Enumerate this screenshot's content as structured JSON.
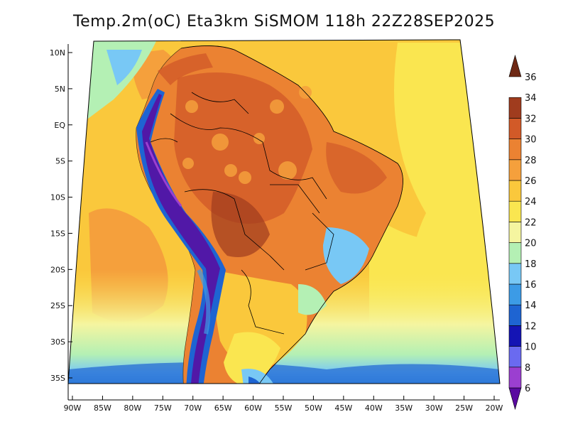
{
  "title": "Temp.2m(oC) Eta3km SiSMOM 118h 22Z28SEP2025",
  "map": {
    "lat_range": [
      -38,
      11
    ],
    "lon_range": [
      -91,
      -19
    ],
    "lat_ticks": [
      {
        "value": 10,
        "label": "10N"
      },
      {
        "value": 5,
        "label": "5N"
      },
      {
        "value": 0,
        "label": "EQ"
      },
      {
        "value": -5,
        "label": "5S"
      },
      {
        "value": -10,
        "label": "10S"
      },
      {
        "value": -15,
        "label": "15S"
      },
      {
        "value": -20,
        "label": "20S"
      },
      {
        "value": -25,
        "label": "25S"
      },
      {
        "value": -30,
        "label": "30S"
      },
      {
        "value": -35,
        "label": "35S"
      }
    ],
    "lon_ticks": [
      {
        "value": -90,
        "label": "90W"
      },
      {
        "value": -85,
        "label": "85W"
      },
      {
        "value": -80,
        "label": "80W"
      },
      {
        "value": -75,
        "label": "75W"
      },
      {
        "value": -70,
        "label": "70W"
      },
      {
        "value": -65,
        "label": "65W"
      },
      {
        "value": -60,
        "label": "60W"
      },
      {
        "value": -55,
        "label": "55W"
      },
      {
        "value": -50,
        "label": "50W"
      },
      {
        "value": -45,
        "label": "45W"
      },
      {
        "value": -40,
        "label": "40W"
      },
      {
        "value": -35,
        "label": "35W"
      },
      {
        "value": -30,
        "label": "30W"
      },
      {
        "value": -25,
        "label": "25W"
      },
      {
        "value": -20,
        "label": "20W"
      }
    ]
  },
  "colorbar": {
    "unit": "oC",
    "levels": [
      6,
      8,
      10,
      12,
      14,
      16,
      18,
      20,
      22,
      24,
      26,
      28,
      30,
      32,
      34,
      36
    ],
    "colors": [
      "#5a0aa0",
      "#9b3fd0",
      "#6a6af0",
      "#1414b4",
      "#1e64d2",
      "#3c9be6",
      "#78c8f5",
      "#b4f0b4",
      "#f5f5a0",
      "#fae650",
      "#fac83c",
      "#f5a03c",
      "#eb8232",
      "#d25a28",
      "#a03c1e",
      "#6e2814"
    ]
  },
  "colors": {
    "land_outline": "#000000",
    "lake": "#1e64d2"
  }
}
